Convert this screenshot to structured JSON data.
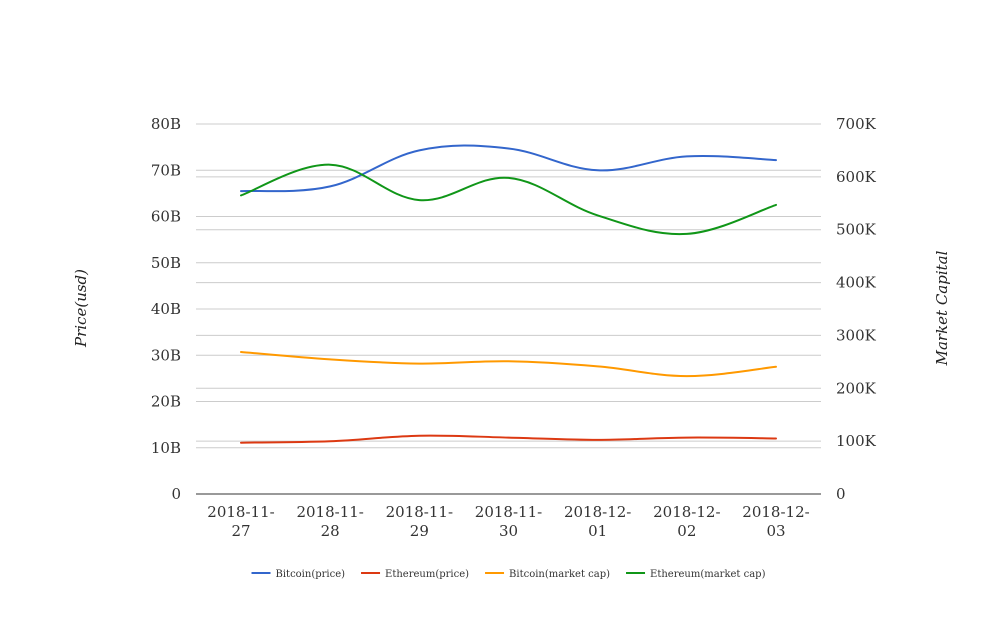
{
  "chart_data": {
    "type": "line",
    "title": "",
    "xlabel": "",
    "ylabel": "Price(usd)",
    "y2label": "Market Capital",
    "categories": [
      "2018-11-27",
      "2018-11-28",
      "2018-11-29",
      "2018-11-30",
      "2018-12-01",
      "2018-12-02",
      "2018-12-03"
    ],
    "x_tick_lines": [
      [
        "2018-11-",
        "27"
      ],
      [
        "2018-11-",
        "28"
      ],
      [
        "2018-11-",
        "29"
      ],
      [
        "2018-11-",
        "30"
      ],
      [
        "2018-12-",
        "01"
      ],
      [
        "2018-12-",
        "02"
      ],
      [
        "2018-12-",
        "03"
      ]
    ],
    "ylim": [
      0,
      80000000000
    ],
    "y_ticks": [
      {
        "value": 0,
        "label": "0"
      },
      {
        "value": 10000000000,
        "label": "10B"
      },
      {
        "value": 20000000000,
        "label": "20B"
      },
      {
        "value": 30000000000,
        "label": "30B"
      },
      {
        "value": 40000000000,
        "label": "40B"
      },
      {
        "value": 50000000000,
        "label": "50B"
      },
      {
        "value": 60000000000,
        "label": "60B"
      },
      {
        "value": 70000000000,
        "label": "70B"
      },
      {
        "value": 80000000000,
        "label": "80B"
      }
    ],
    "y2lim": [
      0,
      700000
    ],
    "y2_ticks": [
      {
        "value": 0,
        "label": "0"
      },
      {
        "value": 100000,
        "label": "100K"
      },
      {
        "value": 200000,
        "label": "200K"
      },
      {
        "value": 300000,
        "label": "300K"
      },
      {
        "value": 400000,
        "label": "400K"
      },
      {
        "value": 500000,
        "label": "500K"
      },
      {
        "value": 600000,
        "label": "600K"
      },
      {
        "value": 700000,
        "label": "700K"
      }
    ],
    "grid": true,
    "legend_position": "bottom",
    "series": [
      {
        "name": "Bitcoin(price)",
        "color": "#3366cc",
        "axis": "left",
        "values": [
          65500000000,
          66500000000,
          74300000000,
          74700000000,
          70000000000,
          73000000000,
          72200000000
        ]
      },
      {
        "name": "Ethereum(price)",
        "color": "#dc3912",
        "axis": "left",
        "values": [
          11100000000,
          11400000000,
          12600000000,
          12200000000,
          11700000000,
          12200000000,
          12000000000
        ]
      },
      {
        "name": "Bitcoin(market cap)",
        "color": "#ff9900",
        "axis": "left",
        "values": [
          30700000000,
          29100000000,
          28200000000,
          28700000000,
          27600000000,
          25500000000,
          27500000000
        ]
      },
      {
        "name": "Ethereum(market cap)",
        "color": "#109618",
        "axis": "right",
        "values": [
          565000,
          623000,
          556000,
          598000,
          527000,
          492000,
          547000
        ]
      }
    ]
  }
}
